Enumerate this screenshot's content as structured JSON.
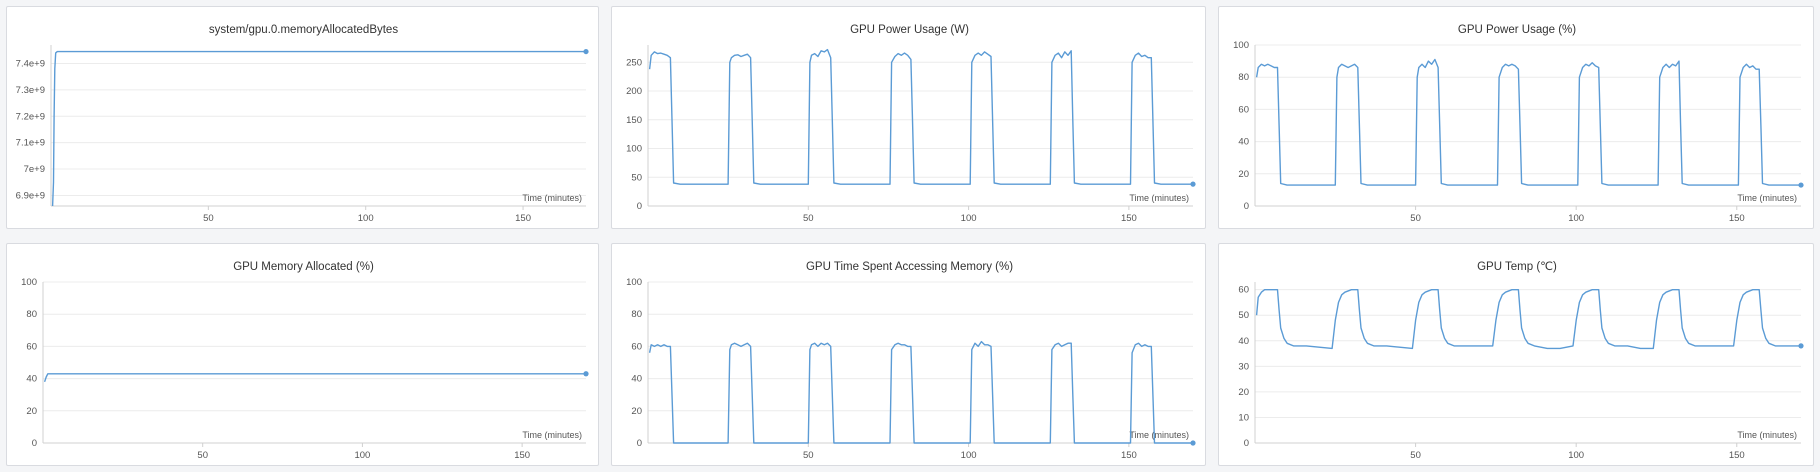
{
  "colors": {
    "series": "#5b9bd5",
    "background": "#f4f5f7"
  },
  "chart_data": [
    {
      "type": "line",
      "title": "system/gpu.0.memoryAllocatedBytes",
      "xlabel": "Time (minutes)",
      "ylabel": "",
      "xlim": [
        0,
        170
      ],
      "ylim": [
        6860000000.0,
        7470000000.0
      ],
      "xticks": [
        50,
        100,
        150
      ],
      "xtick_labels": [
        "50",
        "100",
        "150"
      ],
      "yticks": [
        6900000000.0,
        7000000000.0,
        7100000000.0,
        7200000000.0,
        7300000000.0,
        7400000000.0
      ],
      "ytick_labels": [
        "6.9e+9",
        "7e+9",
        "7.1e+9",
        "7.2e+9",
        "7.3e+9",
        "7.4e+9"
      ],
      "grid": true,
      "series": [
        {
          "x": [
            0.5,
            0.8,
            1.0,
            1.2,
            1.5,
            2,
            170
          ],
          "y": [
            6860000000.0,
            6950000000.0,
            7200000000.0,
            7380000000.0,
            7440000000.0,
            7445000000.0,
            7445000000.0
          ],
          "end_marker": true
        }
      ]
    },
    {
      "type": "line",
      "title": "GPU Power Usage (W)",
      "xlabel": "Time (minutes)",
      "ylabel": "",
      "xlim": [
        0,
        170
      ],
      "ylim": [
        0,
        280
      ],
      "xticks": [
        50,
        100,
        150
      ],
      "xtick_labels": [
        "50",
        "100",
        "150"
      ],
      "yticks": [
        0,
        50,
        100,
        150,
        200,
        250
      ],
      "ytick_labels": [
        "0",
        "50",
        "100",
        "150",
        "200",
        "250"
      ],
      "grid": true,
      "series": [
        {
          "x": [
            0.5,
            1,
            2,
            3,
            4,
            5,
            6,
            7,
            7.5,
            8,
            10,
            20,
            25,
            25.5,
            26,
            27,
            28,
            29,
            30,
            31,
            32,
            32.5,
            33,
            35,
            45,
            50,
            50.5,
            51,
            52,
            53,
            54,
            55,
            56,
            57,
            57.5,
            58,
            60,
            70,
            75.5,
            76,
            77,
            78,
            79,
            80,
            81,
            82,
            82.5,
            83,
            85,
            95,
            100.5,
            101,
            102,
            103,
            104,
            105,
            106,
            107,
            107.5,
            108,
            110,
            120,
            125.5,
            126,
            127,
            128,
            129,
            130,
            131,
            132,
            132.5,
            133,
            135,
            145,
            150.5,
            151,
            152,
            153,
            154,
            155,
            156,
            157,
            157.5,
            158,
            160,
            168,
            170
          ],
          "y": [
            238,
            262,
            268,
            265,
            266,
            264,
            262,
            258,
            150,
            40,
            38,
            38,
            38,
            250,
            258,
            262,
            263,
            260,
            262,
            264,
            258,
            150,
            40,
            38,
            38,
            38,
            250,
            262,
            265,
            260,
            270,
            268,
            272,
            258,
            150,
            40,
            38,
            38,
            38,
            250,
            260,
            265,
            262,
            266,
            262,
            255,
            150,
            40,
            38,
            38,
            38,
            250,
            262,
            266,
            262,
            268,
            264,
            260,
            150,
            40,
            38,
            38,
            38,
            250,
            262,
            266,
            258,
            268,
            262,
            270,
            150,
            40,
            38,
            38,
            38,
            250,
            262,
            266,
            260,
            262,
            258,
            258,
            150,
            40,
            38,
            38,
            38
          ],
          "end_marker": true
        }
      ]
    },
    {
      "type": "line",
      "title": "GPU Power Usage (%)",
      "xlabel": "Time (minutes)",
      "ylabel": "",
      "xlim": [
        0,
        170
      ],
      "ylim": [
        0,
        100
      ],
      "xticks": [
        50,
        100,
        150
      ],
      "xtick_labels": [
        "50",
        "100",
        "150"
      ],
      "yticks": [
        0,
        20,
        40,
        60,
        80,
        100
      ],
      "ytick_labels": [
        "0",
        "20",
        "40",
        "60",
        "80",
        "100"
      ],
      "grid": true,
      "series": [
        {
          "x": [
            0.5,
            1,
            2,
            3,
            4,
            5,
            6,
            7,
            7.5,
            8,
            10,
            20,
            25,
            25.5,
            26,
            27,
            28,
            29,
            30,
            31,
            32,
            32.5,
            33,
            35,
            45,
            50,
            50.5,
            51,
            52,
            53,
            54,
            55,
            56,
            57,
            57.5,
            58,
            60,
            70,
            75.5,
            76,
            77,
            78,
            79,
            80,
            81,
            82,
            82.5,
            83,
            85,
            95,
            100.5,
            101,
            102,
            103,
            104,
            105,
            106,
            107,
            107.5,
            108,
            110,
            120,
            125.5,
            126,
            127,
            128,
            129,
            130,
            131,
            132,
            132.5,
            133,
            135,
            145,
            150.5,
            151,
            152,
            153,
            154,
            155,
            156,
            157,
            157.5,
            158,
            160,
            168,
            170
          ],
          "y": [
            80,
            86,
            88,
            87,
            88,
            87,
            86,
            86,
            50,
            14,
            13,
            13,
            13,
            80,
            86,
            88,
            87,
            86,
            87,
            88,
            86,
            50,
            14,
            13,
            13,
            13,
            80,
            86,
            88,
            86,
            90,
            88,
            91,
            86,
            50,
            14,
            13,
            13,
            13,
            80,
            86,
            88,
            87,
            88,
            87,
            85,
            50,
            14,
            13,
            13,
            13,
            80,
            86,
            88,
            87,
            89,
            87,
            86,
            50,
            14,
            13,
            13,
            13,
            80,
            86,
            88,
            86,
            88,
            87,
            90,
            50,
            14,
            13,
            13,
            13,
            80,
            86,
            88,
            86,
            87,
            85,
            85,
            50,
            14,
            13,
            13,
            13
          ],
          "end_marker": true
        }
      ]
    },
    {
      "type": "line",
      "title": "GPU Memory Allocated (%)",
      "xlabel": "Time (minutes)",
      "ylabel": "",
      "xlim": [
        0,
        170
      ],
      "ylim": [
        0,
        100
      ],
      "xticks": [
        50,
        100,
        150
      ],
      "xtick_labels": [
        "50",
        "100",
        "150"
      ],
      "yticks": [
        0,
        20,
        40,
        60,
        80,
        100
      ],
      "ytick_labels": [
        "0",
        "20",
        "40",
        "60",
        "80",
        "100"
      ],
      "grid": true,
      "series": [
        {
          "x": [
            0.5,
            1,
            1.5,
            2,
            170
          ],
          "y": [
            38,
            41,
            43,
            43,
            43
          ],
          "end_marker": true
        }
      ]
    },
    {
      "type": "line",
      "title": "GPU Time Spent Accessing Memory (%)",
      "xlabel": "Time (minutes)",
      "ylabel": "",
      "xlim": [
        0,
        170
      ],
      "ylim": [
        0,
        100
      ],
      "xticks": [
        50,
        100,
        150
      ],
      "xtick_labels": [
        "50",
        "100",
        "150"
      ],
      "yticks": [
        0,
        20,
        40,
        60,
        80,
        100
      ],
      "ytick_labels": [
        "0",
        "20",
        "40",
        "60",
        "80",
        "100"
      ],
      "grid": true,
      "series": [
        {
          "x": [
            0.5,
            1,
            2,
            3,
            4,
            5,
            6,
            7,
            7.5,
            8,
            10,
            20,
            25,
            25.5,
            26,
            27,
            28,
            29,
            30,
            31,
            32,
            32.5,
            33,
            35,
            45,
            50,
            50.5,
            51,
            52,
            53,
            54,
            55,
            56,
            57,
            57.5,
            58,
            60,
            70,
            75.5,
            76,
            77,
            78,
            79,
            80,
            81,
            82,
            82.5,
            83,
            85,
            95,
            100.5,
            101,
            102,
            103,
            104,
            105,
            106,
            107,
            107.5,
            108,
            110,
            120,
            125.5,
            126,
            127,
            128,
            129,
            130,
            131,
            132,
            132.5,
            133,
            135,
            145,
            150.5,
            151,
            152,
            153,
            154,
            155,
            156,
            157,
            157.5,
            158,
            160,
            168,
            170
          ],
          "y": [
            56,
            61,
            60,
            61,
            60,
            61,
            60,
            60,
            30,
            0,
            0,
            0,
            0,
            58,
            61,
            62,
            61,
            60,
            61,
            62,
            60,
            30,
            0,
            0,
            0,
            0,
            58,
            61,
            62,
            60,
            62,
            61,
            62,
            60,
            30,
            0,
            0,
            0,
            0,
            58,
            61,
            62,
            61,
            61,
            60,
            60,
            30,
            0,
            0,
            0,
            0,
            58,
            62,
            60,
            63,
            61,
            61,
            60,
            30,
            0,
            0,
            0,
            0,
            58,
            61,
            62,
            60,
            61,
            62,
            62,
            30,
            0,
            0,
            0,
            0,
            56,
            61,
            62,
            60,
            61,
            60,
            60,
            30,
            0,
            0,
            0,
            0
          ],
          "end_marker": true
        }
      ]
    },
    {
      "type": "line",
      "title": "GPU Temp (℃)",
      "xlabel": "Time (minutes)",
      "ylabel": "",
      "xlim": [
        0,
        170
      ],
      "ylim": [
        0,
        63
      ],
      "xticks": [
        50,
        100,
        150
      ],
      "xtick_labels": [
        "50",
        "100",
        "150"
      ],
      "yticks": [
        0,
        10,
        20,
        30,
        40,
        50,
        60
      ],
      "ytick_labels": [
        "0",
        "10",
        "20",
        "30",
        "40",
        "50",
        "60"
      ],
      "grid": true,
      "series": [
        {
          "x": [
            0.5,
            1,
            2,
            3,
            4,
            5,
            7,
            7.5,
            8,
            9,
            10,
            12,
            16,
            20,
            24,
            25,
            26,
            27,
            28,
            30,
            32,
            32.5,
            33,
            34,
            35,
            37,
            41,
            45,
            49,
            50,
            51,
            52,
            53,
            55,
            57,
            57.5,
            58,
            59,
            60,
            62,
            66,
            70,
            74,
            75,
            76,
            77,
            78,
            80,
            82,
            82.5,
            83,
            84,
            85,
            87,
            91,
            95,
            99,
            100,
            101,
            102,
            103,
            105,
            107,
            107.5,
            108,
            109,
            110,
            112,
            116,
            120,
            124,
            125,
            126,
            127,
            128,
            130,
            132,
            132.5,
            133,
            134,
            135,
            137,
            141,
            145,
            149,
            150,
            151,
            152,
            153,
            155,
            157,
            157.5,
            158,
            159,
            160,
            162,
            166,
            170
          ],
          "y": [
            50,
            57,
            59,
            60,
            60,
            60,
            60,
            52,
            45,
            41,
            39,
            38,
            38,
            37.5,
            37,
            48,
            55,
            58,
            59,
            60,
            60,
            52,
            45,
            41,
            39,
            38,
            38,
            37.5,
            37,
            48,
            55,
            58,
            59,
            60,
            60,
            52,
            45,
            41,
            39,
            38,
            38,
            38,
            38,
            48,
            55,
            58,
            59,
            60,
            60,
            52,
            45,
            41,
            39,
            38,
            37,
            37,
            38,
            48,
            55,
            58,
            59,
            60,
            60,
            52,
            45,
            41,
            39,
            38,
            38,
            37,
            37,
            48,
            55,
            58,
            59,
            60,
            60,
            52,
            45,
            41,
            39,
            38,
            38,
            38,
            38,
            48,
            55,
            58,
            59,
            60,
            60,
            52,
            45,
            41,
            39,
            38,
            38,
            38
          ],
          "end_marker": true
        }
      ]
    }
  ]
}
